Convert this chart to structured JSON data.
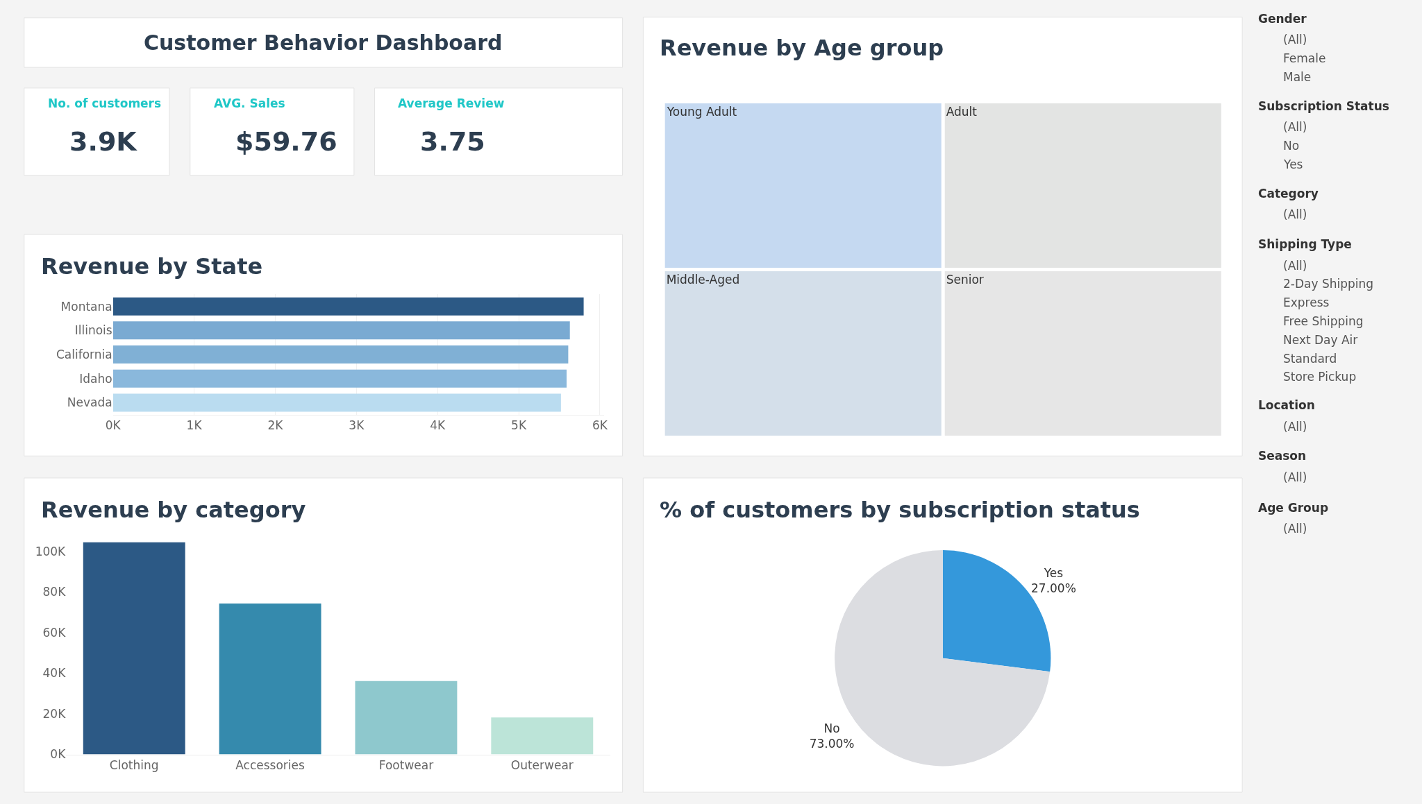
{
  "chart_data": [
    {
      "type": "other",
      "title": "Customer Behavior Dashboard"
    },
    {
      "type": "other",
      "title": "No. of customers",
      "annotations": [
        "3.9K"
      ]
    },
    {
      "type": "other",
      "title": "AVG. Sales",
      "annotations": [
        "$59.76"
      ]
    },
    {
      "type": "other",
      "title": "Average Review",
      "annotations": [
        "3.75"
      ]
    },
    {
      "type": "bar",
      "title": "Revenue by State",
      "orientation": "horizontal",
      "categories": [
        "Montana",
        "Illinois",
        "California",
        "Idaho",
        "Nevada"
      ],
      "values": [
        5800,
        5630,
        5610,
        5590,
        5520
      ],
      "colors": [
        "#2c5985",
        "#7aaad2",
        "#80b0d5",
        "#8ab8dc",
        "#badcf0"
      ],
      "xlim": [
        0,
        6050
      ],
      "xticks": [
        {
          "value": 0,
          "label": "0K"
        },
        {
          "value": 1000,
          "label": "1K"
        },
        {
          "value": 2000,
          "label": "2K"
        },
        {
          "value": 3000,
          "label": "3K"
        },
        {
          "value": 4000,
          "label": "4K"
        },
        {
          "value": 5000,
          "label": "5K"
        },
        {
          "value": 6000,
          "label": "6K"
        }
      ],
      "grid": "x"
    },
    {
      "type": "bar",
      "title": "Revenue by category",
      "categories": [
        "Clothing",
        "Accessories",
        "Footwear",
        "Outerwear"
      ],
      "values": [
        104500,
        74300,
        36100,
        18200
      ],
      "colors": [
        "#2c5985",
        "#358aad",
        "#8ec8cd",
        "#bce4d8"
      ],
      "ylim": [
        0,
        106000
      ],
      "yticks": [
        {
          "value": 0,
          "label": "0K"
        },
        {
          "value": 20000,
          "label": "20K"
        },
        {
          "value": 40000,
          "label": "40K"
        },
        {
          "value": 60000,
          "label": "60K"
        },
        {
          "value": 80000,
          "label": "80K"
        },
        {
          "value": 100000,
          "label": "100K"
        }
      ],
      "grid": false
    },
    {
      "type": "other",
      "title": "Revenue by Age group",
      "categories": [
        "Young Adult",
        "Middle-Aged",
        "Adult",
        "Senior"
      ],
      "colors": [
        "#c5d9f1",
        "#d4dfea",
        "#e3e4e3",
        "#e6e6e6"
      ]
    },
    {
      "type": "pie",
      "title": "% of customers by subscription status",
      "categories": [
        "Yes",
        "No"
      ],
      "values": [
        27,
        73
      ],
      "value_labels": [
        "27.00%",
        "73.00%"
      ],
      "colors": [
        "#3498db",
        "#dcdde1"
      ]
    },
    {
      "type": "other",
      "title": "Gender",
      "annotations": [
        "(All)",
        "Female",
        "Male"
      ]
    },
    {
      "type": "other",
      "title": "Subscription Status",
      "annotations": [
        "(All)",
        "No",
        "Yes"
      ]
    },
    {
      "type": "other",
      "title": "Category",
      "annotations": [
        "(All)"
      ]
    },
    {
      "type": "other",
      "title": "Shipping Type",
      "annotations": [
        "(All)",
        "2-Day Shipping",
        "Express",
        "Free Shipping",
        "Next Day Air",
        "Standard",
        "Store Pickup"
      ]
    },
    {
      "type": "other",
      "title": "Location",
      "annotations": [
        "(All)"
      ]
    },
    {
      "type": "other",
      "title": "Season",
      "annotations": [
        "(All)"
      ]
    },
    {
      "type": "other",
      "title": "Age Group",
      "annotations": [
        "(All)"
      ]
    }
  ]
}
